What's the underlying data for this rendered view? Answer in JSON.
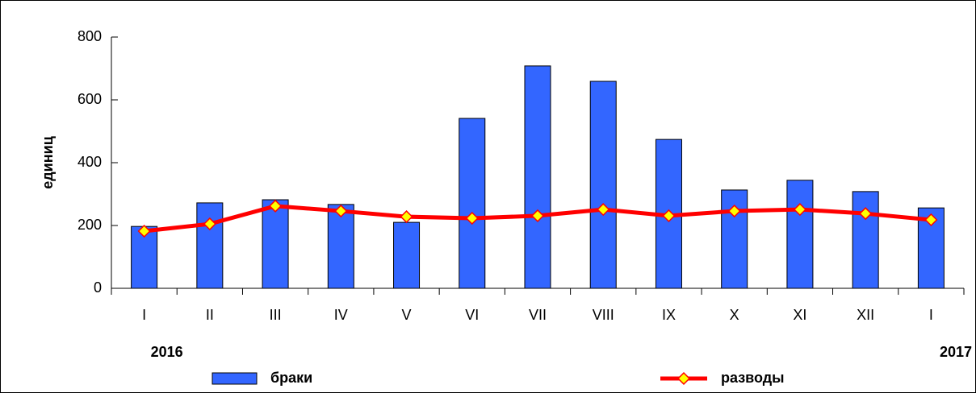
{
  "chart_data": {
    "type": "bar",
    "y_label": "единиц",
    "categories": [
      "I",
      "II",
      "III",
      "IV",
      "V",
      "VI",
      "VII",
      "VIII",
      "IX",
      "X",
      "XI",
      "XII",
      "I"
    ],
    "year_labels": [
      "2016",
      "2017"
    ],
    "series": [
      {
        "name": "браки",
        "type": "bar",
        "color": "#3366ff",
        "values": [
          197,
          272,
          282,
          267,
          210,
          541,
          708,
          659,
          474,
          313,
          344,
          308,
          256
        ]
      },
      {
        "name": "разводы",
        "type": "line",
        "color": "#ff0000",
        "marker_color": "#ffff00",
        "values": [
          182,
          205,
          262,
          246,
          228,
          223,
          231,
          251,
          231,
          246,
          251,
          238,
          218
        ]
      }
    ],
    "ylim": [
      0,
      800
    ],
    "yticks": [
      0,
      200,
      400,
      600,
      800
    ]
  }
}
